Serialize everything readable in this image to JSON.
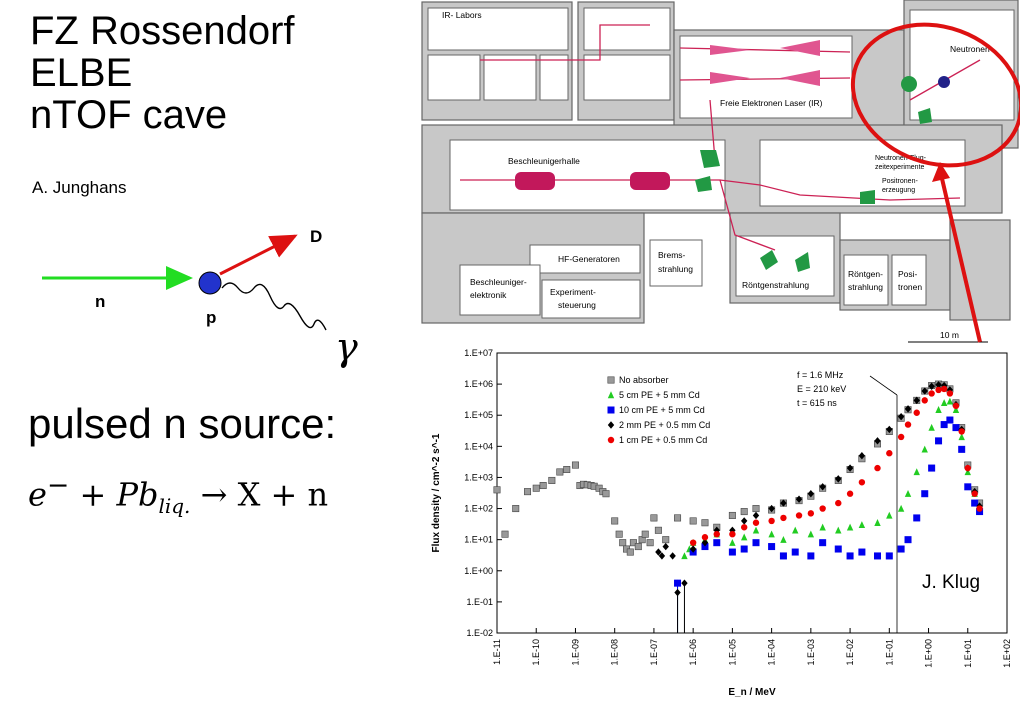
{
  "title_lines": [
    "FZ Rossendorf",
    "ELBE",
    "nTOF cave"
  ],
  "author": "A. Junghans",
  "reaction": {
    "n": "n",
    "p": "p",
    "d": "D",
    "gamma": "γ"
  },
  "pulsed_label": "pulsed n source:",
  "formula": {
    "lhs1": "e",
    "lhs1_sup": "−",
    "lhs2": " + Pb",
    "lhs2_sub": "liq.",
    "rhs": " → X + n"
  },
  "floorplan": {
    "labels": {
      "ir_labors": "IR- Labors",
      "neutronen": "Neutronen",
      "fel": "Freie Elektronen Laser (IR)",
      "beschleunigerhalle": "Beschleunigerhalle",
      "flug1": "Neutronen-Flug-",
      "flug2": "zeitexperimente",
      "posi1": "Positronen-",
      "posi2": "erzeugung",
      "hf": "HF-Generatoren",
      "brems1": "Brems-",
      "brems2": "strahlung",
      "besch1": "Beschleuniger-",
      "besch2": "elektronik",
      "exp1": "Experiment-",
      "exp2": "steuerung",
      "roentgen": "Röntgenstrahlung",
      "rs1": "Röntgen-",
      "rs2": "strahlung",
      "pos1": "Posi-",
      "pos2": "tronen",
      "scale": "10 m"
    }
  },
  "chart_data": {
    "type": "scatter",
    "xlabel": "E_n / MeV",
    "ylabel": "Flux density / cm^-2 s^-1",
    "xscale": "log",
    "yscale": "log",
    "xlim": [
      1e-11,
      100
    ],
    "ylim": [
      0.01,
      10000000.0
    ],
    "xticks": [
      "1.E-11",
      "1.E-10",
      "1.E-09",
      "1.E-08",
      "1.E-07",
      "1.E-06",
      "1.E-05",
      "1.E-04",
      "1.E-03",
      "1.E-02",
      "1.E-01",
      "1.E+00",
      "1.E+01",
      "1.E+02"
    ],
    "yticks": [
      "1.E-02",
      "1.E-01",
      "1.E+00",
      "1.E+01",
      "1.E+02",
      "1.E+03",
      "1.E+04",
      "1.E+05",
      "1.E+06",
      "1.E+07"
    ],
    "legend_position": "top-center",
    "annotation": [
      "f = 1.6 MHz",
      "E = 210 keV",
      "t = 615 ns"
    ],
    "credit": "J. Klug",
    "series": [
      {
        "name": "No absorber",
        "color": "#999999",
        "marker": "square",
        "points": [
          [
            1e-11,
            400
          ],
          [
            1.6e-11,
            15
          ],
          [
            3e-11,
            100
          ],
          [
            6e-11,
            350
          ],
          [
            1e-10,
            450
          ],
          [
            1.5e-10,
            550
          ],
          [
            2.5e-10,
            800
          ],
          [
            4e-10,
            1500
          ],
          [
            6e-10,
            1800
          ],
          [
            1e-09,
            2500
          ],
          [
            1.3e-09,
            550
          ],
          [
            1.6e-09,
            600
          ],
          [
            2e-09,
            580
          ],
          [
            2.5e-09,
            550
          ],
          [
            3e-09,
            520
          ],
          [
            4e-09,
            450
          ],
          [
            5e-09,
            350
          ],
          [
            6e-09,
            300
          ],
          [
            1e-08,
            40
          ],
          [
            1.3e-08,
            15
          ],
          [
            1.6e-08,
            8
          ],
          [
            2e-08,
            5
          ],
          [
            2.5e-08,
            4
          ],
          [
            3e-08,
            8
          ],
          [
            4e-08,
            6
          ],
          [
            5e-08,
            10
          ],
          [
            6e-08,
            15
          ],
          [
            8e-08,
            8
          ],
          [
            1e-07,
            50
          ],
          [
            1.3e-07,
            20
          ],
          [
            2e-07,
            10
          ],
          [
            4e-07,
            50
          ],
          [
            1e-06,
            40
          ],
          [
            2e-06,
            35
          ],
          [
            4e-06,
            25
          ],
          [
            1e-05,
            60
          ],
          [
            2e-05,
            80
          ],
          [
            4e-05,
            100
          ],
          [
            0.0001,
            90
          ],
          [
            0.0002,
            150
          ],
          [
            0.0005,
            180
          ],
          [
            0.001,
            250
          ],
          [
            0.002,
            450
          ],
          [
            0.005,
            800
          ],
          [
            0.01,
            1800
          ],
          [
            0.02,
            4000
          ],
          [
            0.05,
            12000
          ],
          [
            0.1,
            30000
          ],
          [
            0.2,
            80000
          ],
          [
            0.3,
            150000
          ],
          [
            0.5,
            300000
          ],
          [
            0.8,
            600000
          ],
          [
            1.2,
            900000
          ],
          [
            1.8,
            1000000
          ],
          [
            2.5,
            950000
          ],
          [
            3.5,
            700000
          ],
          [
            5,
            250000
          ],
          [
            7,
            40000
          ],
          [
            10,
            2500
          ],
          [
            15,
            400
          ],
          [
            20,
            150
          ]
        ]
      },
      {
        "name": "5 cm PE + 5 mm Cd",
        "color": "#22cc22",
        "marker": "triangle",
        "points": [
          [
            4e-07,
            0.4
          ],
          [
            6e-07,
            3
          ],
          [
            8e-07,
            5
          ],
          [
            1e-06,
            8
          ],
          [
            2e-06,
            10
          ],
          [
            4e-06,
            15
          ],
          [
            1e-05,
            8
          ],
          [
            2e-05,
            12
          ],
          [
            4e-05,
            20
          ],
          [
            0.0001,
            15
          ],
          [
            0.0002,
            10
          ],
          [
            0.0004,
            20
          ],
          [
            0.001,
            15
          ],
          [
            0.002,
            25
          ],
          [
            0.005,
            20
          ],
          [
            0.01,
            25
          ],
          [
            0.02,
            30
          ],
          [
            0.05,
            35
          ],
          [
            0.1,
            60
          ],
          [
            0.2,
            100
          ],
          [
            0.3,
            300
          ],
          [
            0.5,
            1500
          ],
          [
            0.8,
            8000
          ],
          [
            1.2,
            40000
          ],
          [
            1.8,
            150000
          ],
          [
            2.5,
            250000
          ],
          [
            3.5,
            280000
          ],
          [
            5,
            150000
          ],
          [
            7,
            20000
          ],
          [
            10,
            1500
          ],
          [
            15,
            300
          ],
          [
            20,
            100
          ]
        ]
      },
      {
        "name": "10 cm PE + 5 mm Cd",
        "color": "#0000ee",
        "marker": "square",
        "points": [
          [
            4e-07,
            0.4
          ],
          [
            1e-06,
            4
          ],
          [
            2e-06,
            6
          ],
          [
            4e-06,
            8
          ],
          [
            1e-05,
            4
          ],
          [
            2e-05,
            5
          ],
          [
            4e-05,
            8
          ],
          [
            0.0001,
            6
          ],
          [
            0.0002,
            3
          ],
          [
            0.0004,
            4
          ],
          [
            0.001,
            3
          ],
          [
            0.002,
            8
          ],
          [
            0.005,
            5
          ],
          [
            0.01,
            3
          ],
          [
            0.02,
            4
          ],
          [
            0.05,
            3
          ],
          [
            0.1,
            3
          ],
          [
            0.2,
            5
          ],
          [
            0.3,
            10
          ],
          [
            0.5,
            50
          ],
          [
            0.8,
            300
          ],
          [
            1.2,
            2000
          ],
          [
            1.8,
            15000
          ],
          [
            2.5,
            50000
          ],
          [
            3.5,
            70000
          ],
          [
            5,
            40000
          ],
          [
            7,
            8000
          ],
          [
            10,
            500
          ],
          [
            15,
            150
          ],
          [
            20,
            80
          ]
        ]
      },
      {
        "name": "2 mm PE + 0.5 mm Cd",
        "color": "#000000",
        "marker": "diamond",
        "points": [
          [
            1.3e-07,
            4
          ],
          [
            1.6e-07,
            3
          ],
          [
            2e-07,
            6
          ],
          [
            3e-07,
            3
          ],
          [
            4e-07,
            0.2
          ],
          [
            6e-07,
            0.4
          ],
          [
            1e-06,
            5
          ],
          [
            2e-06,
            8
          ],
          [
            4e-06,
            20
          ],
          [
            1e-05,
            20
          ],
          [
            2e-05,
            40
          ],
          [
            4e-05,
            60
          ],
          [
            0.0001,
            100
          ],
          [
            0.0002,
            150
          ],
          [
            0.0005,
            200
          ],
          [
            0.001,
            300
          ],
          [
            0.002,
            500
          ],
          [
            0.005,
            900
          ],
          [
            0.01,
            2000
          ],
          [
            0.02,
            5000
          ],
          [
            0.05,
            15000
          ],
          [
            0.1,
            35000
          ],
          [
            0.2,
            90000
          ],
          [
            0.3,
            160000
          ],
          [
            0.5,
            300000
          ],
          [
            0.8,
            600000
          ],
          [
            1.2,
            850000
          ],
          [
            1.8,
            950000
          ],
          [
            2.5,
            900000
          ],
          [
            3.5,
            650000
          ],
          [
            5,
            220000
          ],
          [
            7,
            35000
          ],
          [
            10,
            2000
          ],
          [
            15,
            350
          ],
          [
            20,
            120
          ]
        ]
      },
      {
        "name": "1 cm PE + 0.5 mm Cd",
        "color": "#ee0000",
        "marker": "circle",
        "points": [
          [
            1e-06,
            8
          ],
          [
            2e-06,
            12
          ],
          [
            4e-06,
            15
          ],
          [
            1e-05,
            15
          ],
          [
            2e-05,
            25
          ],
          [
            4e-05,
            35
          ],
          [
            0.0001,
            40
          ],
          [
            0.0002,
            50
          ],
          [
            0.0005,
            60
          ],
          [
            0.001,
            70
          ],
          [
            0.002,
            100
          ],
          [
            0.005,
            150
          ],
          [
            0.01,
            300
          ],
          [
            0.02,
            700
          ],
          [
            0.05,
            2000
          ],
          [
            0.1,
            6000
          ],
          [
            0.2,
            20000
          ],
          [
            0.3,
            50000
          ],
          [
            0.5,
            120000
          ],
          [
            0.8,
            300000
          ],
          [
            1.2,
            500000
          ],
          [
            1.8,
            650000
          ],
          [
            2.5,
            700000
          ],
          [
            3.5,
            500000
          ],
          [
            5,
            200000
          ],
          [
            7,
            30000
          ],
          [
            10,
            2000
          ],
          [
            15,
            300
          ],
          [
            20,
            100
          ]
        ]
      }
    ]
  }
}
